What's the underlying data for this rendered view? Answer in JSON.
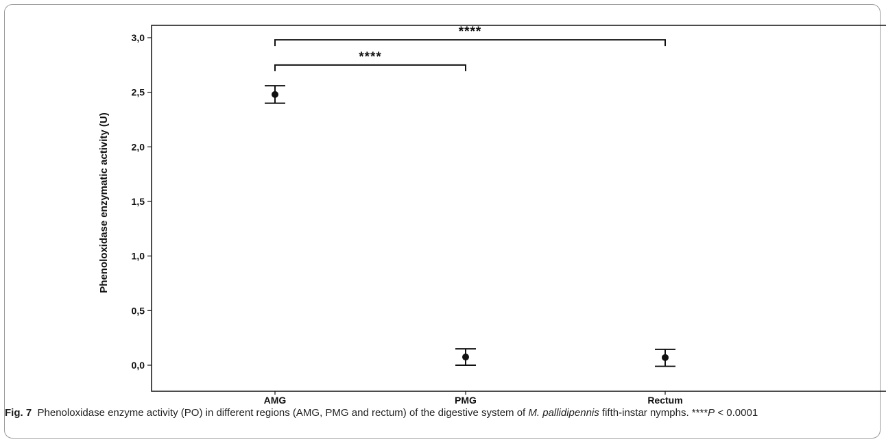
{
  "chart_data": {
    "type": "scatter",
    "ylabel": "Phenoloxidase enzymatic activity (U)",
    "xlabel": "",
    "categories": [
      "AMG",
      "PMG",
      "Rectum"
    ],
    "values": [
      2.48,
      0.075,
      0.07
    ],
    "error_low": [
      2.4,
      0.0,
      -0.01
    ],
    "error_high": [
      2.56,
      0.15,
      0.145
    ],
    "ylim": [
      -0.15,
      3.15
    ],
    "yticks": [
      0.0,
      0.5,
      1.0,
      1.5,
      2.0,
      2.5,
      3.0
    ],
    "ytick_labels": [
      "0,0",
      "0,5",
      "1,0",
      "1,5",
      "2,0",
      "2,5",
      "3,0"
    ],
    "grid": false,
    "significance": [
      {
        "from": "AMG",
        "to": "PMG",
        "label": "****",
        "level": 2.75
      },
      {
        "from": "AMG",
        "to": "Rectum",
        "label": "****",
        "level": 2.98
      }
    ]
  },
  "caption": {
    "label": "Fig. 7",
    "text_before": "Phenoloxidase enzyme activity (PO) in different regions (AMG, PMG and rectum) of the digestive system of ",
    "species": "M. pallidipennis",
    "text_after": " fifth-instar nymphs. ****",
    "p_symbol": "P",
    "p_text": " < 0.0001"
  }
}
